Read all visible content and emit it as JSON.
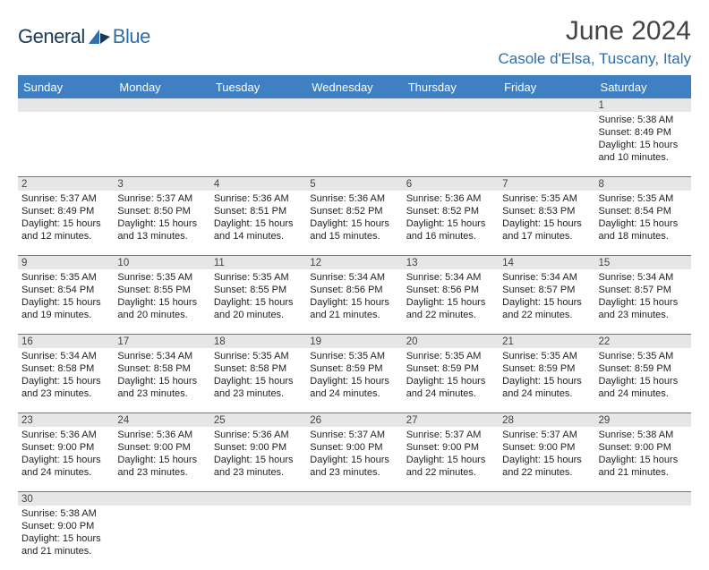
{
  "header": {
    "logo_general": "General",
    "logo_blue": "Blue",
    "month_title": "June 2024",
    "location": "Casole d'Elsa, Tuscany, Italy"
  },
  "colors": {
    "bar": "#3e80c1",
    "num_bg": "#e6e6e6",
    "accent": "#2f6ea8"
  },
  "weekdays": [
    "Sunday",
    "Monday",
    "Tuesday",
    "Wednesday",
    "Thursday",
    "Friday",
    "Saturday"
  ],
  "weeks": [
    {
      "nums": [
        "",
        "",
        "",
        "",
        "",
        "",
        "1"
      ],
      "cells": [
        null,
        null,
        null,
        null,
        null,
        null,
        {
          "sunrise": "Sunrise: 5:38 AM",
          "sunset": "Sunset: 8:49 PM",
          "day1": "Daylight: 15 hours",
          "day2": "and 10 minutes."
        }
      ]
    },
    {
      "nums": [
        "2",
        "3",
        "4",
        "5",
        "6",
        "7",
        "8"
      ],
      "cells": [
        {
          "sunrise": "Sunrise: 5:37 AM",
          "sunset": "Sunset: 8:49 PM",
          "day1": "Daylight: 15 hours",
          "day2": "and 12 minutes."
        },
        {
          "sunrise": "Sunrise: 5:37 AM",
          "sunset": "Sunset: 8:50 PM",
          "day1": "Daylight: 15 hours",
          "day2": "and 13 minutes."
        },
        {
          "sunrise": "Sunrise: 5:36 AM",
          "sunset": "Sunset: 8:51 PM",
          "day1": "Daylight: 15 hours",
          "day2": "and 14 minutes."
        },
        {
          "sunrise": "Sunrise: 5:36 AM",
          "sunset": "Sunset: 8:52 PM",
          "day1": "Daylight: 15 hours",
          "day2": "and 15 minutes."
        },
        {
          "sunrise": "Sunrise: 5:36 AM",
          "sunset": "Sunset: 8:52 PM",
          "day1": "Daylight: 15 hours",
          "day2": "and 16 minutes."
        },
        {
          "sunrise": "Sunrise: 5:35 AM",
          "sunset": "Sunset: 8:53 PM",
          "day1": "Daylight: 15 hours",
          "day2": "and 17 minutes."
        },
        {
          "sunrise": "Sunrise: 5:35 AM",
          "sunset": "Sunset: 8:54 PM",
          "day1": "Daylight: 15 hours",
          "day2": "and 18 minutes."
        }
      ]
    },
    {
      "nums": [
        "9",
        "10",
        "11",
        "12",
        "13",
        "14",
        "15"
      ],
      "cells": [
        {
          "sunrise": "Sunrise: 5:35 AM",
          "sunset": "Sunset: 8:54 PM",
          "day1": "Daylight: 15 hours",
          "day2": "and 19 minutes."
        },
        {
          "sunrise": "Sunrise: 5:35 AM",
          "sunset": "Sunset: 8:55 PM",
          "day1": "Daylight: 15 hours",
          "day2": "and 20 minutes."
        },
        {
          "sunrise": "Sunrise: 5:35 AM",
          "sunset": "Sunset: 8:55 PM",
          "day1": "Daylight: 15 hours",
          "day2": "and 20 minutes."
        },
        {
          "sunrise": "Sunrise: 5:34 AM",
          "sunset": "Sunset: 8:56 PM",
          "day1": "Daylight: 15 hours",
          "day2": "and 21 minutes."
        },
        {
          "sunrise": "Sunrise: 5:34 AM",
          "sunset": "Sunset: 8:56 PM",
          "day1": "Daylight: 15 hours",
          "day2": "and 22 minutes."
        },
        {
          "sunrise": "Sunrise: 5:34 AM",
          "sunset": "Sunset: 8:57 PM",
          "day1": "Daylight: 15 hours",
          "day2": "and 22 minutes."
        },
        {
          "sunrise": "Sunrise: 5:34 AM",
          "sunset": "Sunset: 8:57 PM",
          "day1": "Daylight: 15 hours",
          "day2": "and 23 minutes."
        }
      ]
    },
    {
      "nums": [
        "16",
        "17",
        "18",
        "19",
        "20",
        "21",
        "22"
      ],
      "cells": [
        {
          "sunrise": "Sunrise: 5:34 AM",
          "sunset": "Sunset: 8:58 PM",
          "day1": "Daylight: 15 hours",
          "day2": "and 23 minutes."
        },
        {
          "sunrise": "Sunrise: 5:34 AM",
          "sunset": "Sunset: 8:58 PM",
          "day1": "Daylight: 15 hours",
          "day2": "and 23 minutes."
        },
        {
          "sunrise": "Sunrise: 5:35 AM",
          "sunset": "Sunset: 8:58 PM",
          "day1": "Daylight: 15 hours",
          "day2": "and 23 minutes."
        },
        {
          "sunrise": "Sunrise: 5:35 AM",
          "sunset": "Sunset: 8:59 PM",
          "day1": "Daylight: 15 hours",
          "day2": "and 24 minutes."
        },
        {
          "sunrise": "Sunrise: 5:35 AM",
          "sunset": "Sunset: 8:59 PM",
          "day1": "Daylight: 15 hours",
          "day2": "and 24 minutes."
        },
        {
          "sunrise": "Sunrise: 5:35 AM",
          "sunset": "Sunset: 8:59 PM",
          "day1": "Daylight: 15 hours",
          "day2": "and 24 minutes."
        },
        {
          "sunrise": "Sunrise: 5:35 AM",
          "sunset": "Sunset: 8:59 PM",
          "day1": "Daylight: 15 hours",
          "day2": "and 24 minutes."
        }
      ]
    },
    {
      "nums": [
        "23",
        "24",
        "25",
        "26",
        "27",
        "28",
        "29"
      ],
      "cells": [
        {
          "sunrise": "Sunrise: 5:36 AM",
          "sunset": "Sunset: 9:00 PM",
          "day1": "Daylight: 15 hours",
          "day2": "and 24 minutes."
        },
        {
          "sunrise": "Sunrise: 5:36 AM",
          "sunset": "Sunset: 9:00 PM",
          "day1": "Daylight: 15 hours",
          "day2": "and 23 minutes."
        },
        {
          "sunrise": "Sunrise: 5:36 AM",
          "sunset": "Sunset: 9:00 PM",
          "day1": "Daylight: 15 hours",
          "day2": "and 23 minutes."
        },
        {
          "sunrise": "Sunrise: 5:37 AM",
          "sunset": "Sunset: 9:00 PM",
          "day1": "Daylight: 15 hours",
          "day2": "and 23 minutes."
        },
        {
          "sunrise": "Sunrise: 5:37 AM",
          "sunset": "Sunset: 9:00 PM",
          "day1": "Daylight: 15 hours",
          "day2": "and 22 minutes."
        },
        {
          "sunrise": "Sunrise: 5:37 AM",
          "sunset": "Sunset: 9:00 PM",
          "day1": "Daylight: 15 hours",
          "day2": "and 22 minutes."
        },
        {
          "sunrise": "Sunrise: 5:38 AM",
          "sunset": "Sunset: 9:00 PM",
          "day1": "Daylight: 15 hours",
          "day2": "and 21 minutes."
        }
      ]
    },
    {
      "nums": [
        "30",
        "",
        "",
        "",
        "",
        "",
        ""
      ],
      "cells": [
        {
          "sunrise": "Sunrise: 5:38 AM",
          "sunset": "Sunset: 9:00 PM",
          "day1": "Daylight: 15 hours",
          "day2": "and 21 minutes."
        },
        null,
        null,
        null,
        null,
        null,
        null
      ]
    }
  ]
}
